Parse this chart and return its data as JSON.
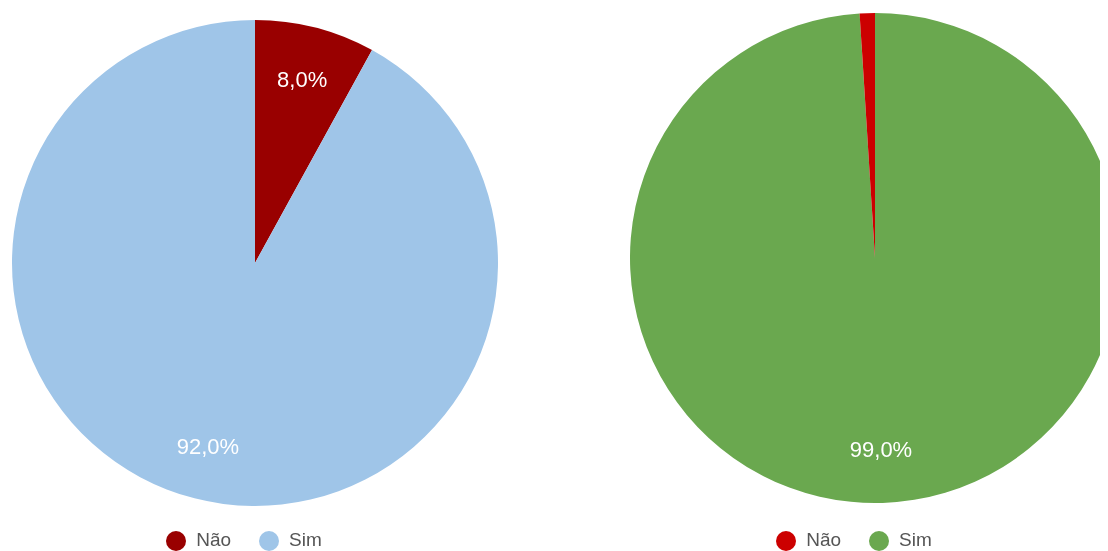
{
  "chart_data": [
    {
      "type": "pie",
      "categories": [
        "Não",
        "Sim"
      ],
      "values": [
        8.0,
        92.0
      ],
      "colors": [
        "#990000",
        "#9fc5e8"
      ],
      "value_labels": [
        "8,0%",
        "92,0%"
      ],
      "legend": "bottom"
    },
    {
      "type": "pie",
      "categories": [
        "Sim",
        "Não"
      ],
      "values": [
        99.0,
        1.0
      ],
      "colors": [
        "#6aa84f",
        "#cc0000"
      ],
      "value_labels": [
        "99,0%",
        null
      ],
      "legend": "bottom"
    }
  ]
}
